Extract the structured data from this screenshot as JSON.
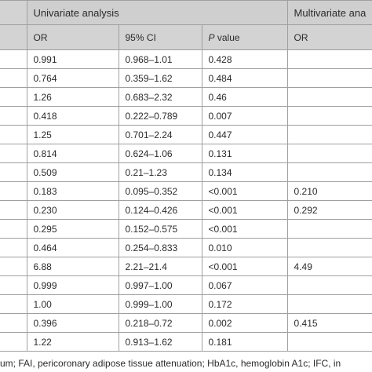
{
  "table": {
    "group_headers": {
      "univariate": "Univariate analysis",
      "multivariate": "Multivariate ana"
    },
    "sub_headers": {
      "or": "OR",
      "ci": "95% CI",
      "p_letter": "P",
      "p_rest": " value",
      "or2": "OR"
    },
    "rows": [
      {
        "or": "0.991",
        "ci": "0.968–1.01",
        "p": "0.428",
        "mor": ""
      },
      {
        "or": "0.764",
        "ci": "0.359–1.62",
        "p": "0.484",
        "mor": ""
      },
      {
        "or": "1.26",
        "ci": "0.683–2.32",
        "p": "0.46",
        "mor": ""
      },
      {
        "or": "0.418",
        "ci": "0.222–0.789",
        "p": "0.007",
        "mor": ""
      },
      {
        "or": "1.25",
        "ci": "0.701–2.24",
        "p": "0.447",
        "mor": ""
      },
      {
        "or": "0.814",
        "ci": "0.624–1.06",
        "p": "0.131",
        "mor": ""
      },
      {
        "or": "0.509",
        "ci": "0.21–1.23",
        "p": "0.134",
        "mor": ""
      },
      {
        "or": "0.183",
        "ci": "0.095–0.352",
        "p": "<0.001",
        "mor": "0.210"
      },
      {
        "or": "0.230",
        "ci": "0.124–0.426",
        "p": "<0.001",
        "mor": "0.292"
      },
      {
        "or": "0.295",
        "ci": "0.152–0.575",
        "p": "<0.001",
        "mor": ""
      },
      {
        "or": "0.464",
        "ci": "0.254–0.833",
        "p": "0.010",
        "mor": ""
      },
      {
        "or": "6.88",
        "ci": "2.21–21.4",
        "p": "<0.001",
        "mor": "4.49"
      },
      {
        "or": "0.999",
        "ci": "0.997–1.00",
        "p": "0.067",
        "mor": ""
      },
      {
        "or": "1.00",
        "ci": "0.999–1.00",
        "p": "0.172",
        "mor": ""
      },
      {
        "or": "0.396",
        "ci": "0.218–0.72",
        "p": "0.002",
        "mor": "0.415"
      },
      {
        "or": "1.22",
        "ci": "0.913–1.62",
        "p": "0.181",
        "mor": ""
      }
    ]
  },
  "footnote": "um; FAI, pericoronary adipose tissue attenuation; HbA1c, hemoglobin A1c; IFC, in"
}
